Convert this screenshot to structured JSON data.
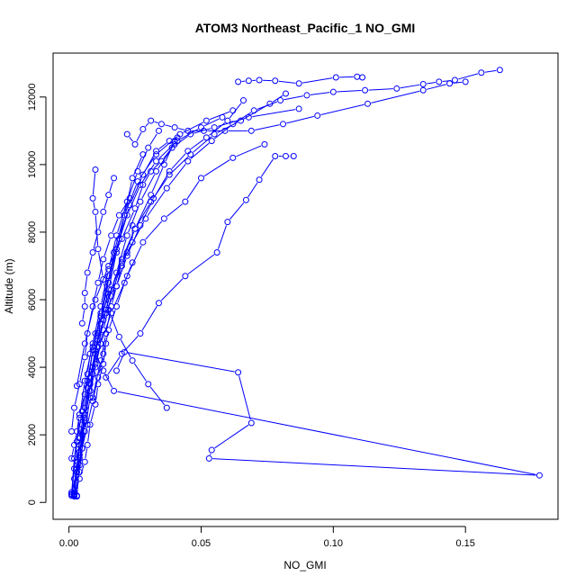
{
  "chart_data": {
    "type": "line",
    "title": "ATOM3 Northeast_Pacific_1 NO_GMI",
    "xlabel": "NO_GMI",
    "ylabel": "Altitude (m)",
    "xlim": [
      -0.006,
      0.185
    ],
    "ylim": [
      -500,
      13300
    ],
    "x_ticks": [
      0.0,
      0.05,
      0.1,
      0.15
    ],
    "x_tick_labels": [
      "0.00",
      "0.05",
      "0.10",
      "0.15"
    ],
    "y_ticks": [
      0,
      2000,
      4000,
      6000,
      8000,
      10000,
      12000
    ],
    "y_tick_labels": [
      "0",
      "2000",
      "4000",
      "6000",
      "8000",
      "10000",
      "12000"
    ],
    "grid": false,
    "legend": "none",
    "marker": "open-circle",
    "color": "#0000ff",
    "series": [
      {
        "x": [
          0.002,
          0.004,
          0.005,
          0.006,
          0.008,
          0.009,
          0.011,
          0.014,
          0.018,
          0.022,
          0.027,
          0.032,
          0.038,
          0.045,
          0.052,
          0.06,
          0.066
        ],
        "y": [
          180,
          900,
          1600,
          2500,
          3300,
          4000,
          4800,
          5600,
          6400,
          7300,
          8200,
          9000,
          9800,
          10400,
          10800,
          11300,
          11900
        ]
      },
      {
        "x": [
          0.001,
          0.003,
          0.004,
          0.006,
          0.008,
          0.01,
          0.013,
          0.016,
          0.02,
          0.025,
          0.031,
          0.038,
          0.046,
          0.055,
          0.065,
          0.076,
          0.082
        ],
        "y": [
          200,
          1000,
          1900,
          2800,
          3700,
          4500,
          5400,
          6300,
          7200,
          8100,
          8900,
          9700,
          10300,
          10900,
          11300,
          11800,
          12100
        ]
      },
      {
        "x": [
          0.002,
          0.003,
          0.005,
          0.007,
          0.009,
          0.012,
          0.015,
          0.019,
          0.023,
          0.028,
          0.033,
          0.038,
          0.041
        ],
        "y": [
          220,
          1200,
          2300,
          3400,
          4500,
          5600,
          6700,
          7800,
          8800,
          9700,
          10400,
          10700,
          10800
        ]
      },
      {
        "x": [
          0.001,
          0.002,
          0.004,
          0.006,
          0.009,
          0.012,
          0.015,
          0.018,
          0.022,
          0.026,
          0.03,
          0.034
        ],
        "y": [
          250,
          1300,
          2500,
          3600,
          4700,
          5800,
          6900,
          7900,
          8900,
          9800,
          10500,
          11000
        ]
      },
      {
        "x": [
          0.002,
          0.003,
          0.004,
          0.006,
          0.008,
          0.01,
          0.012,
          0.015,
          0.018,
          0.021,
          0.024,
          0.028
        ],
        "y": [
          230,
          900,
          1700,
          2600,
          3500,
          4400,
          5300,
          6300,
          7400,
          8500,
          9600,
          10300
        ]
      },
      {
        "x": [
          0.003,
          0.004,
          0.006,
          0.008,
          0.01,
          0.013,
          0.016,
          0.02,
          0.025,
          0.031,
          0.036,
          0.04
        ],
        "y": [
          200,
          1100,
          2100,
          3100,
          4100,
          5100,
          6100,
          7100,
          8100,
          9100,
          10000,
          10700
        ]
      },
      {
        "x": [
          0.001,
          0.002,
          0.003,
          0.005,
          0.007,
          0.009,
          0.012,
          0.015,
          0.018,
          0.022,
          0.027,
          0.033,
          0.041,
          0.05,
          0.058
        ],
        "y": [
          240,
          1000,
          1800,
          2700,
          3600,
          4500,
          5500,
          6500,
          7500,
          8500,
          9400,
          10100,
          10700,
          11100,
          11400
        ]
      },
      {
        "x": [
          0.002,
          0.004,
          0.006,
          0.009,
          0.011,
          0.014,
          0.017,
          0.021,
          0.026,
          0.033,
          0.042,
          0.052,
          0.062
        ],
        "y": [
          260,
          1400,
          2600,
          3800,
          5000,
          6200,
          7400,
          8500,
          9500,
          10300,
          10900,
          11300,
          11600
        ]
      },
      {
        "x": [
          0.003,
          0.004,
          0.006,
          0.008,
          0.011,
          0.014,
          0.018,
          0.022,
          0.027,
          0.033,
          0.039,
          0.046,
          0.055,
          0.068,
          0.087
        ],
        "y": [
          180,
          1300,
          2400,
          3500,
          4600,
          5700,
          6800,
          7900,
          8900,
          9800,
          10500,
          10900,
          11100,
          11400,
          11650
        ]
      },
      {
        "x": [
          0.01,
          0.009,
          0.01,
          0.011,
          0.013,
          0.015,
          0.019,
          0.024,
          0.03,
          0.037
        ],
        "y": [
          9850,
          9000,
          8600,
          7500,
          6600,
          5700,
          4900,
          4200,
          3500,
          2800
        ]
      },
      {
        "x": [
          0.012,
          0.016,
          0.022,
          0.028,
          0.036,
          0.044,
          0.05,
          0.062,
          0.074
        ],
        "y": [
          4700,
          5600,
          6700,
          7700,
          8400,
          8900,
          9600,
          10200,
          10600
        ]
      },
      {
        "x": [
          0.003,
          0.006,
          0.01,
          0.015,
          0.02,
          0.025,
          0.028,
          0.031,
          0.035,
          0.04
        ],
        "y": [
          3450,
          4700,
          6000,
          7000,
          7800,
          8700,
          9400,
          9800,
          10100,
          10600
        ]
      },
      {
        "x": [
          0.022,
          0.025,
          0.028,
          0.031,
          0.035,
          0.04,
          0.045,
          0.051,
          0.059,
          0.069,
          0.081,
          0.094,
          0.113,
          0.134,
          0.144,
          0.15
        ],
        "y": [
          10900,
          10600,
          11050,
          11300,
          11200,
          11100,
          11000,
          11000,
          11000,
          11000,
          11200,
          11450,
          11800,
          12200,
          12400,
          12450
        ]
      },
      {
        "x": [
          0.064,
          0.068,
          0.072,
          0.078,
          0.087,
          0.101,
          0.109,
          0.111
        ],
        "y": [
          12450,
          12480,
          12500,
          12480,
          12400,
          12580,
          12600,
          12580
        ]
      },
      {
        "x": [
          0.012,
          0.02,
          0.029,
          0.037,
          0.045,
          0.054,
          0.062,
          0.07,
          0.08,
          0.09,
          0.1,
          0.112,
          0.124,
          0.134,
          0.14,
          0.146,
          0.156,
          0.163
        ],
        "y": [
          5500,
          7100,
          8400,
          9300,
          10100,
          10700,
          11200,
          11600,
          11900,
          12050,
          12150,
          12200,
          12250,
          12380,
          12450,
          12500,
          12720,
          12800
        ]
      },
      {
        "x": [
          0.009,
          0.012,
          0.014,
          0.016,
          0.018,
          0.02,
          0.022,
          0.024,
          0.024
        ],
        "y": [
          3100,
          4200,
          5000,
          5800,
          6400,
          7000,
          7400,
          7700,
          8200
        ]
      },
      {
        "x": [
          0.001,
          0.002,
          0.004,
          0.006,
          0.007,
          0.009,
          0.011,
          0.013,
          0.016,
          0.019,
          0.023
        ],
        "y": [
          2100,
          2800,
          3500,
          4300,
          5000,
          5800,
          6500,
          7200,
          7900,
          8500,
          9000
        ]
      },
      {
        "x": [
          0.005,
          0.006,
          0.006,
          0.007,
          0.009,
          0.011,
          0.013,
          0.015,
          0.017
        ],
        "y": [
          5300,
          5800,
          6200,
          6800,
          7400,
          8000,
          8600,
          9100,
          9600
        ]
      },
      {
        "x": [
          0.014,
          0.02,
          0.027,
          0.034,
          0.044,
          0.056,
          0.06,
          0.067,
          0.072,
          0.078,
          0.082,
          0.085
        ],
        "y": [
          3700,
          4400,
          5000,
          5900,
          6700,
          7400,
          8300,
          8950,
          9550,
          10250,
          10250,
          10250
        ]
      },
      {
        "x": [
          0.001,
          0.003,
          0.005,
          0.007,
          0.009,
          0.011,
          0.013,
          0.015,
          0.018,
          0.021,
          0.024
        ],
        "y": [
          300,
          900,
          1600,
          2300,
          3000,
          3700,
          4400,
          5100,
          5800,
          6500,
          7100
        ]
      },
      {
        "x": [
          0.002,
          0.002,
          0.003,
          0.004,
          0.005,
          0.006,
          0.008,
          0.01,
          0.012
        ],
        "y": [
          300,
          700,
          1100,
          1500,
          2000,
          2600,
          3300,
          4000,
          4700
        ]
      },
      {
        "x": [
          0.018,
          0.021,
          0.064,
          0.069,
          0.054,
          0.053,
          0.178,
          0.017,
          0.013,
          0.009
        ],
        "y": [
          3900,
          4450,
          3850,
          2350,
          1550,
          1300,
          800,
          3300,
          3900,
          4600
        ]
      },
      {
        "x": [
          0.001,
          0.002,
          0.003,
          0.004,
          0.006,
          0.007,
          0.008,
          0.01
        ],
        "y": [
          1300,
          1700,
          2100,
          2600,
          3200,
          3800,
          4400,
          5000
        ]
      },
      {
        "x": [
          0.002,
          0.004,
          0.006,
          0.007,
          0.008,
          0.01,
          0.011,
          0.013,
          0.014
        ],
        "y": [
          200,
          700,
          1200,
          1700,
          2300,
          2900,
          3500,
          4100,
          4700
        ]
      }
    ]
  }
}
